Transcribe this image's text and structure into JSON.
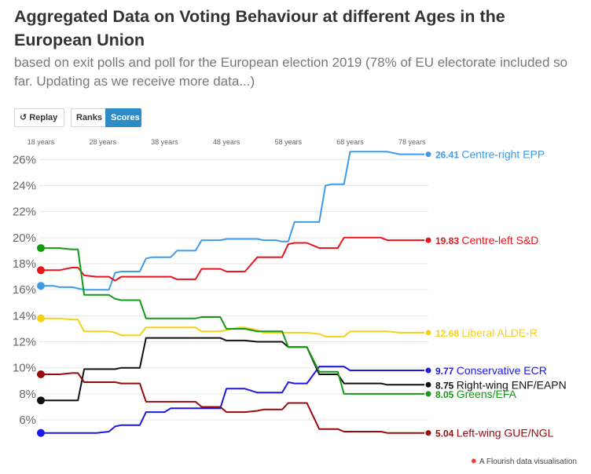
{
  "title": "Aggregated Data on Voting Behaviour at different Ages in the European Union",
  "subtitle": "based on exit polls and poll for the European election 2019 (78% of EU electorate included so far. Updating as we receive more data...)",
  "controls": {
    "replay_label": "Replay",
    "ranks_label": "Ranks",
    "scores_label": "Scores",
    "active": "Scores"
  },
  "footer": {
    "credit": "A Flourish data visualisation",
    "icon": "flourish-logo-icon"
  },
  "chart_data": {
    "type": "line",
    "title": "",
    "xlabel": "",
    "ylabel": "",
    "x_ticks": [
      "18 years",
      "28 years",
      "38 years",
      "48 years",
      "58 years",
      "68 years",
      "78 years"
    ],
    "x_tick_values": [
      18,
      28,
      38,
      48,
      58,
      68,
      78
    ],
    "xlim": [
      18,
      80
    ],
    "ylim": [
      4.8,
      26.8
    ],
    "y_ticks": [
      6,
      8,
      10,
      12,
      14,
      16,
      18,
      20,
      22,
      24,
      26
    ],
    "y_tick_suffix": "%",
    "grid": "horizontal",
    "legend": "end-labels-right",
    "series": [
      {
        "name": "Centre-right EPP",
        "color": "#3d9be9",
        "end_value": "26.41",
        "x": [
          18,
          20,
          21,
          23,
          24,
          25,
          27,
          29,
          30,
          31,
          32,
          34,
          35,
          36,
          38,
          39,
          40,
          42,
          43,
          44,
          46,
          47,
          48,
          50,
          51,
          53,
          54,
          56,
          57,
          58,
          59,
          60,
          61,
          63,
          64,
          65,
          66,
          67,
          68,
          70,
          71,
          73,
          74,
          76,
          77,
          80
        ],
        "y": [
          16.3,
          16.3,
          16.2,
          16.2,
          16.1,
          16.0,
          16.0,
          16.0,
          17.3,
          17.4,
          17.4,
          17.4,
          18.4,
          18.5,
          18.5,
          18.5,
          19.0,
          19.0,
          19.0,
          19.8,
          19.8,
          19.8,
          19.9,
          19.9,
          19.9,
          19.9,
          19.8,
          19.8,
          19.7,
          19.7,
          21.2,
          21.2,
          21.2,
          21.2,
          24.0,
          24.1,
          24.1,
          24.1,
          26.6,
          26.6,
          26.6,
          26.6,
          26.6,
          26.4,
          26.4,
          26.4
        ]
      },
      {
        "name": "Centre-left S&D",
        "color": "#e8161c",
        "end_value": "19.83",
        "x": [
          18,
          20,
          21,
          23,
          24,
          25,
          27,
          29,
          30,
          31,
          32,
          34,
          35,
          36,
          38,
          39,
          40,
          42,
          43,
          44,
          46,
          47,
          48,
          50,
          51,
          53,
          54,
          56,
          57,
          58,
          59,
          60,
          61,
          63,
          64,
          65,
          66,
          67,
          68,
          70,
          71,
          73,
          74,
          76,
          77,
          80
        ],
        "y": [
          17.5,
          17.5,
          17.5,
          17.7,
          17.7,
          17.1,
          17.0,
          17.0,
          16.7,
          17.0,
          17.0,
          17.0,
          17.0,
          17.0,
          17.0,
          17.0,
          16.8,
          16.8,
          16.8,
          17.6,
          17.6,
          17.6,
          17.4,
          17.4,
          17.4,
          18.5,
          18.5,
          18.5,
          18.5,
          19.5,
          19.6,
          19.6,
          19.6,
          19.2,
          19.2,
          19.2,
          19.2,
          20.0,
          20.0,
          20.0,
          20.0,
          20.0,
          19.8,
          19.8,
          19.8,
          19.8
        ]
      },
      {
        "name": "Liberal ALDE-R",
        "color": "#f7d117",
        "end_value": "12.68",
        "x": [
          18,
          20,
          21,
          23,
          24,
          25,
          27,
          29,
          30,
          31,
          32,
          34,
          35,
          36,
          38,
          39,
          40,
          42,
          43,
          44,
          46,
          47,
          48,
          50,
          51,
          53,
          54,
          56,
          57,
          58,
          59,
          60,
          61,
          63,
          64,
          65,
          66,
          67,
          68,
          70,
          71,
          73,
          74,
          76,
          77,
          80
        ],
        "y": [
          13.8,
          13.8,
          13.8,
          13.7,
          13.7,
          12.8,
          12.8,
          12.8,
          12.7,
          12.5,
          12.5,
          12.5,
          13.1,
          13.1,
          13.1,
          13.1,
          13.1,
          13.1,
          13.1,
          12.8,
          12.8,
          12.8,
          12.9,
          13.1,
          13.1,
          12.9,
          12.7,
          12.7,
          12.7,
          12.7,
          12.7,
          12.7,
          12.7,
          12.6,
          12.4,
          12.4,
          12.4,
          12.4,
          12.8,
          12.8,
          12.8,
          12.8,
          12.8,
          12.7,
          12.7,
          12.7
        ]
      },
      {
        "name": "Conservative ECR",
        "color": "#1d17e8",
        "end_value": "9.77",
        "x": [
          18,
          20,
          21,
          23,
          24,
          25,
          27,
          29,
          30,
          31,
          32,
          34,
          35,
          36,
          38,
          39,
          40,
          42,
          43,
          44,
          46,
          47,
          48,
          50,
          51,
          53,
          54,
          56,
          57,
          58,
          59,
          60,
          61,
          63,
          64,
          65,
          66,
          67,
          68,
          70,
          71,
          73,
          74,
          76,
          77,
          80
        ],
        "y": [
          5.0,
          5.0,
          5.0,
          5.0,
          5.0,
          5.0,
          5.0,
          5.1,
          5.5,
          5.6,
          5.6,
          5.6,
          6.6,
          6.6,
          6.6,
          6.9,
          6.9,
          6.9,
          6.9,
          6.9,
          6.9,
          6.9,
          8.4,
          8.4,
          8.4,
          8.1,
          8.1,
          8.1,
          8.1,
          8.9,
          8.8,
          8.8,
          8.8,
          10.1,
          10.1,
          10.1,
          10.1,
          10.1,
          9.8,
          9.8,
          9.8,
          9.8,
          9.8,
          9.8,
          9.8,
          9.8
        ]
      },
      {
        "name": "Right-wing ENF/EAPN",
        "color": "#111111",
        "end_value": "8.75",
        "x": [
          18,
          20,
          21,
          23,
          24,
          25,
          27,
          29,
          30,
          31,
          32,
          34,
          35,
          36,
          38,
          39,
          40,
          42,
          43,
          44,
          46,
          47,
          48,
          50,
          51,
          53,
          54,
          56,
          57,
          58,
          59,
          60,
          61,
          63,
          64,
          65,
          66,
          67,
          68,
          70,
          71,
          73,
          74,
          76,
          77,
          80
        ],
        "y": [
          7.5,
          7.5,
          7.5,
          7.5,
          7.5,
          9.9,
          9.9,
          9.9,
          9.9,
          10.0,
          10.0,
          10.0,
          12.3,
          12.3,
          12.3,
          12.3,
          12.3,
          12.3,
          12.3,
          12.3,
          12.3,
          12.3,
          12.1,
          12.1,
          12.1,
          12.0,
          12.0,
          12.0,
          12.0,
          11.6,
          11.6,
          11.6,
          11.6,
          9.5,
          9.5,
          9.5,
          9.5,
          8.8,
          8.8,
          8.8,
          8.8,
          8.8,
          8.7,
          8.7,
          8.7,
          8.7
        ]
      },
      {
        "name": "Greens/EFA",
        "color": "#129a12",
        "end_value": "8.05",
        "x": [
          18,
          20,
          21,
          23,
          24,
          25,
          27,
          29,
          30,
          31,
          32,
          34,
          35,
          36,
          38,
          39,
          40,
          42,
          43,
          44,
          46,
          47,
          48,
          50,
          51,
          53,
          54,
          56,
          57,
          58,
          59,
          60,
          61,
          63,
          64,
          65,
          66,
          67,
          68,
          70,
          71,
          73,
          74,
          76,
          77,
          80
        ],
        "y": [
          19.2,
          19.2,
          19.2,
          19.1,
          19.1,
          15.6,
          15.6,
          15.6,
          15.3,
          15.2,
          15.2,
          15.2,
          13.8,
          13.8,
          13.8,
          13.8,
          13.8,
          13.8,
          13.8,
          13.9,
          13.9,
          13.9,
          13.0,
          13.0,
          13.0,
          12.8,
          12.8,
          12.8,
          12.8,
          11.6,
          11.6,
          11.6,
          11.6,
          9.7,
          9.7,
          9.7,
          9.7,
          8.0,
          8.0,
          8.0,
          8.0,
          8.0,
          8.0,
          8.0,
          8.0,
          8.0
        ]
      },
      {
        "name": "Left-wing GUE/NGL",
        "color": "#990a0a",
        "end_value": "5.04",
        "x": [
          18,
          20,
          21,
          23,
          24,
          25,
          27,
          29,
          30,
          31,
          32,
          34,
          35,
          36,
          38,
          39,
          40,
          42,
          43,
          44,
          46,
          47,
          48,
          50,
          51,
          53,
          54,
          56,
          57,
          58,
          59,
          60,
          61,
          63,
          64,
          65,
          66,
          67,
          68,
          70,
          71,
          73,
          74,
          76,
          77,
          80
        ],
        "y": [
          9.5,
          9.5,
          9.5,
          9.6,
          9.6,
          8.9,
          8.9,
          8.9,
          8.9,
          8.8,
          8.8,
          8.8,
          7.4,
          7.4,
          7.4,
          7.4,
          7.4,
          7.4,
          7.4,
          7.0,
          7.0,
          7.0,
          6.6,
          6.6,
          6.6,
          6.7,
          6.8,
          6.8,
          6.8,
          7.3,
          7.3,
          7.3,
          7.3,
          5.3,
          5.3,
          5.3,
          5.3,
          5.1,
          5.1,
          5.1,
          5.1,
          5.1,
          5.0,
          5.0,
          5.0,
          5.0
        ]
      }
    ]
  }
}
